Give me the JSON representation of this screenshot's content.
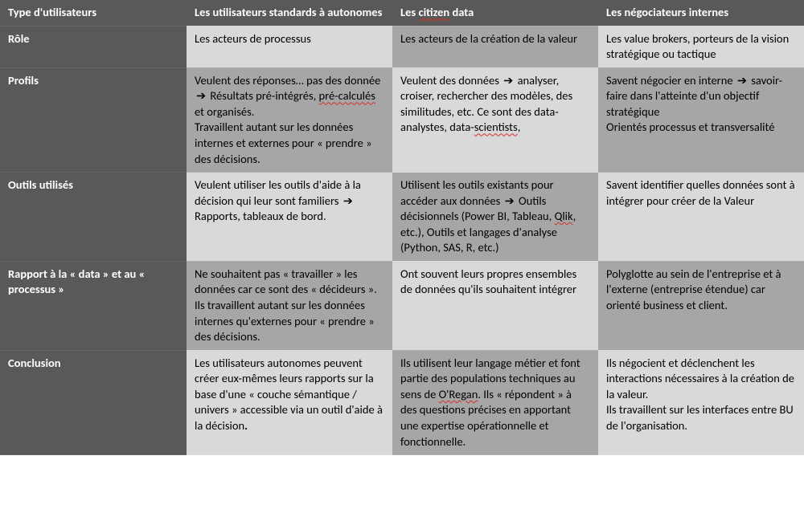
{
  "arrow": "➔",
  "colors": {
    "header_bg": "#595959",
    "header_fg": "#ffffff",
    "light_bg": "#d9d9d9",
    "dark_bg": "#a6a6a6",
    "squiggle": "#d93025"
  },
  "header": {
    "c0": "Type d'utilisateurs",
    "c1": "Les utilisateurs standards à autonomes",
    "c2_a": "Les ",
    "c2_b": "citizen",
    "c2_c": " data",
    "c3": "Les négociateurs internes"
  },
  "rows": {
    "role": {
      "label": "Rôle",
      "c1": "Les acteurs de processus",
      "c2": "Les acteurs de la création de la valeur",
      "c3": "Les value brokers, porteurs de la vision stratégique ou tactique"
    },
    "profils": {
      "label": "Profils",
      "c1_a": "Veulent des réponses… pas des donnée ",
      "c1_b": " Résultats pré-intégrés, ",
      "c1_c": "pré-calculés",
      "c1_d": " et organisés.",
      "c1_e": "Travaillent autant sur les données internes et externes pour « prendre » des décisions.",
      "c2_a": "Veulent des données ",
      "c2_b": " analyser, croiser, rechercher des modèles, des similitudes, etc. Ce sont des data-analystes, data-",
      "c2_c": "scientists",
      "c2_d": ",",
      "c3_a": "Savent négocier en interne ",
      "c3_b": " savoir-faire dans l'atteinte d'un objectif stratégique",
      "c3_c": "Orientés processus et transversalité"
    },
    "outils": {
      "label": "Outils utilisés",
      "c1_a": "Veulent utiliser les outils d'aide à la décision qui leur sont familiers ",
      "c1_b": " Rapports, tableaux de bord.",
      "c2_a": "Utilisent les outils existants pour accéder aux données ",
      "c2_b": " Outils décisionnels (Power BI, Tableau, ",
      "c2_c": "Qlik",
      "c2_d": ", etc.), Outils et langages d'analyse (Python, SAS, R, etc.)",
      "c3": "Savent identifier quelles données sont à intégrer pour créer de la Valeur"
    },
    "rapport": {
      "label": "Rapport à la « data » et au « processus »",
      "c1": "Ne souhaitent pas « travailler » les données car ce sont des « décideurs ». Ils travaillent autant sur les données internes qu'externes pour « prendre » des décisions.",
      "c2": "Ont souvent leurs propres ensembles de données qu'ils souhaitent intégrer",
      "c3": "Polyglotte au sein de l'entreprise et à l'externe (entreprise étendue) car orienté business et client."
    },
    "conclusion": {
      "label": "Conclusion",
      "c1_a": "Les utilisateurs autonomes peuvent créer eux-mêmes leurs rapports sur la base d'une « couche sémantique / univers » accessible via un outil d'aide à la décision",
      "c1_b": ".",
      "c2_a": "Ils utilisent leur langage métier et font partie des populations techniques au sens de ",
      "c2_b": "O'Regan",
      "c2_c": ". Ils « répondent » à des questions précises en apportant une expertise opérationnelle et fonctionnelle.",
      "c3_a": "Ils négocient et déclenchent les interactions nécessaires à la création de la valeur.",
      "c3_b": "Ils travaillent sur les interfaces entre BU de l'organisation."
    }
  }
}
